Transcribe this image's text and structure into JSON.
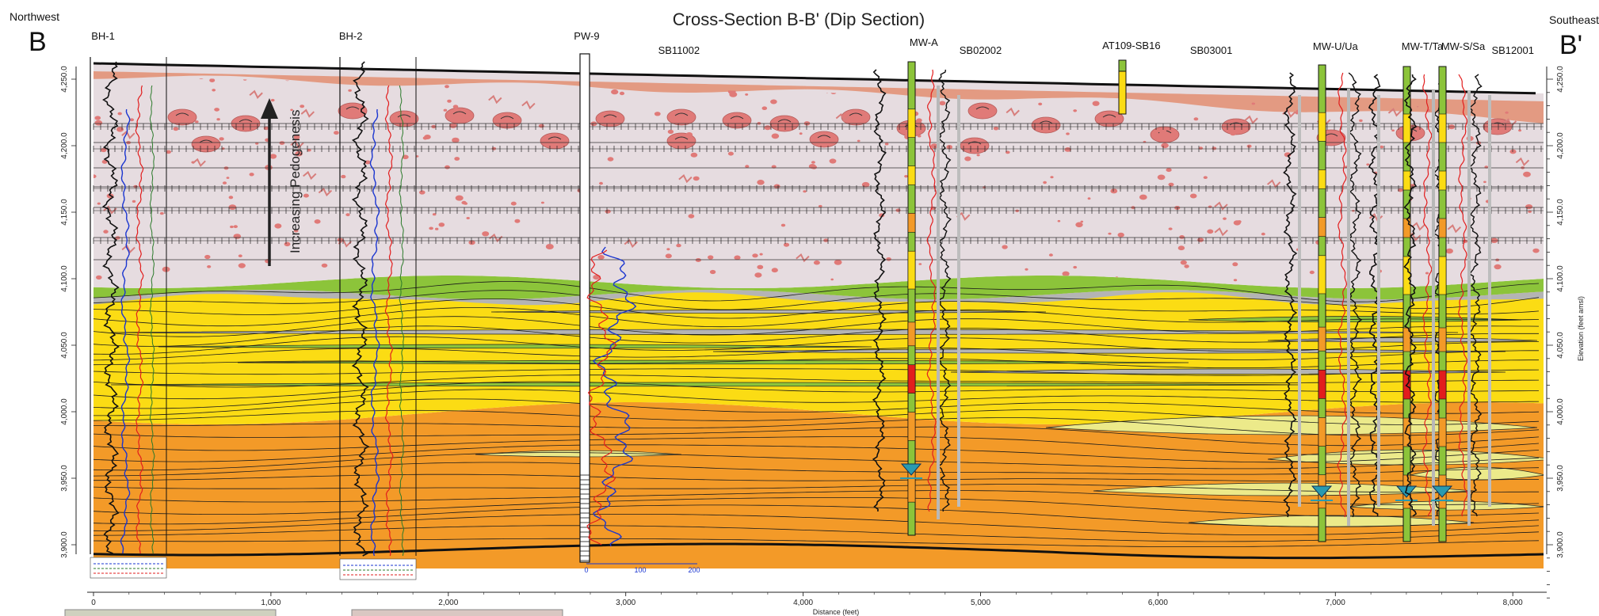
{
  "title": "Cross-Section B-B' (Dip Section)",
  "corners": {
    "left_direction": "Northwest",
    "right_direction": "Southeast",
    "left_label": "B",
    "right_label": "B'"
  },
  "wells": [
    {
      "name": "BH-1",
      "distance": 0
    },
    {
      "name": "BH-2",
      "distance": 1450
    },
    {
      "name": "PW-9",
      "distance": 2780
    },
    {
      "name": "SB11002",
      "distance": 3300
    },
    {
      "name": "MW-A",
      "distance": 4680
    },
    {
      "name": "SB02002",
      "distance": 5000
    },
    {
      "name": "AT109-SB16",
      "distance": 5850
    },
    {
      "name": "SB03001",
      "distance": 6300
    },
    {
      "name": "MW-U/Ua",
      "distance": 7000
    },
    {
      "name": "MW-T/Ta",
      "distance": 7490
    },
    {
      "name": "MW-S/Sa",
      "distance": 7720
    },
    {
      "name": "SB12001",
      "distance": 8000
    }
  ],
  "elevation_axis": {
    "label": "Elevation (feet amsl)",
    "ticks": [
      "4,250.0",
      "4,200.0",
      "4,150.0",
      "4,100.0",
      "4,050.0",
      "4,000.0",
      "3,950.0",
      "3,900.0"
    ]
  },
  "distance_axis": {
    "label": "Distance (feet)",
    "ticks": [
      "0",
      "1,000",
      "2,000",
      "3,000",
      "4,000",
      "5,000",
      "6,000",
      "7,000",
      "8,000"
    ]
  },
  "pedogenesis_label": "Increasing Pedogenesis",
  "pw9_log_scale": [
    "0",
    "100",
    "200"
  ],
  "colors": {
    "soil_zone": "#e6dce0",
    "soil_top": "#e39a82",
    "nodule": "#e07a78",
    "green_layer": "#8cc43a",
    "yellow_layer": "#fbdc14",
    "pale_yellow": "#ecea8a",
    "orange_layer": "#f39a28",
    "gray_layer": "#b4b4b4",
    "log_black": "#111111",
    "log_blue": "#1a35d0",
    "log_red": "#e21d1d",
    "water_marker": "#2a9ab0"
  }
}
